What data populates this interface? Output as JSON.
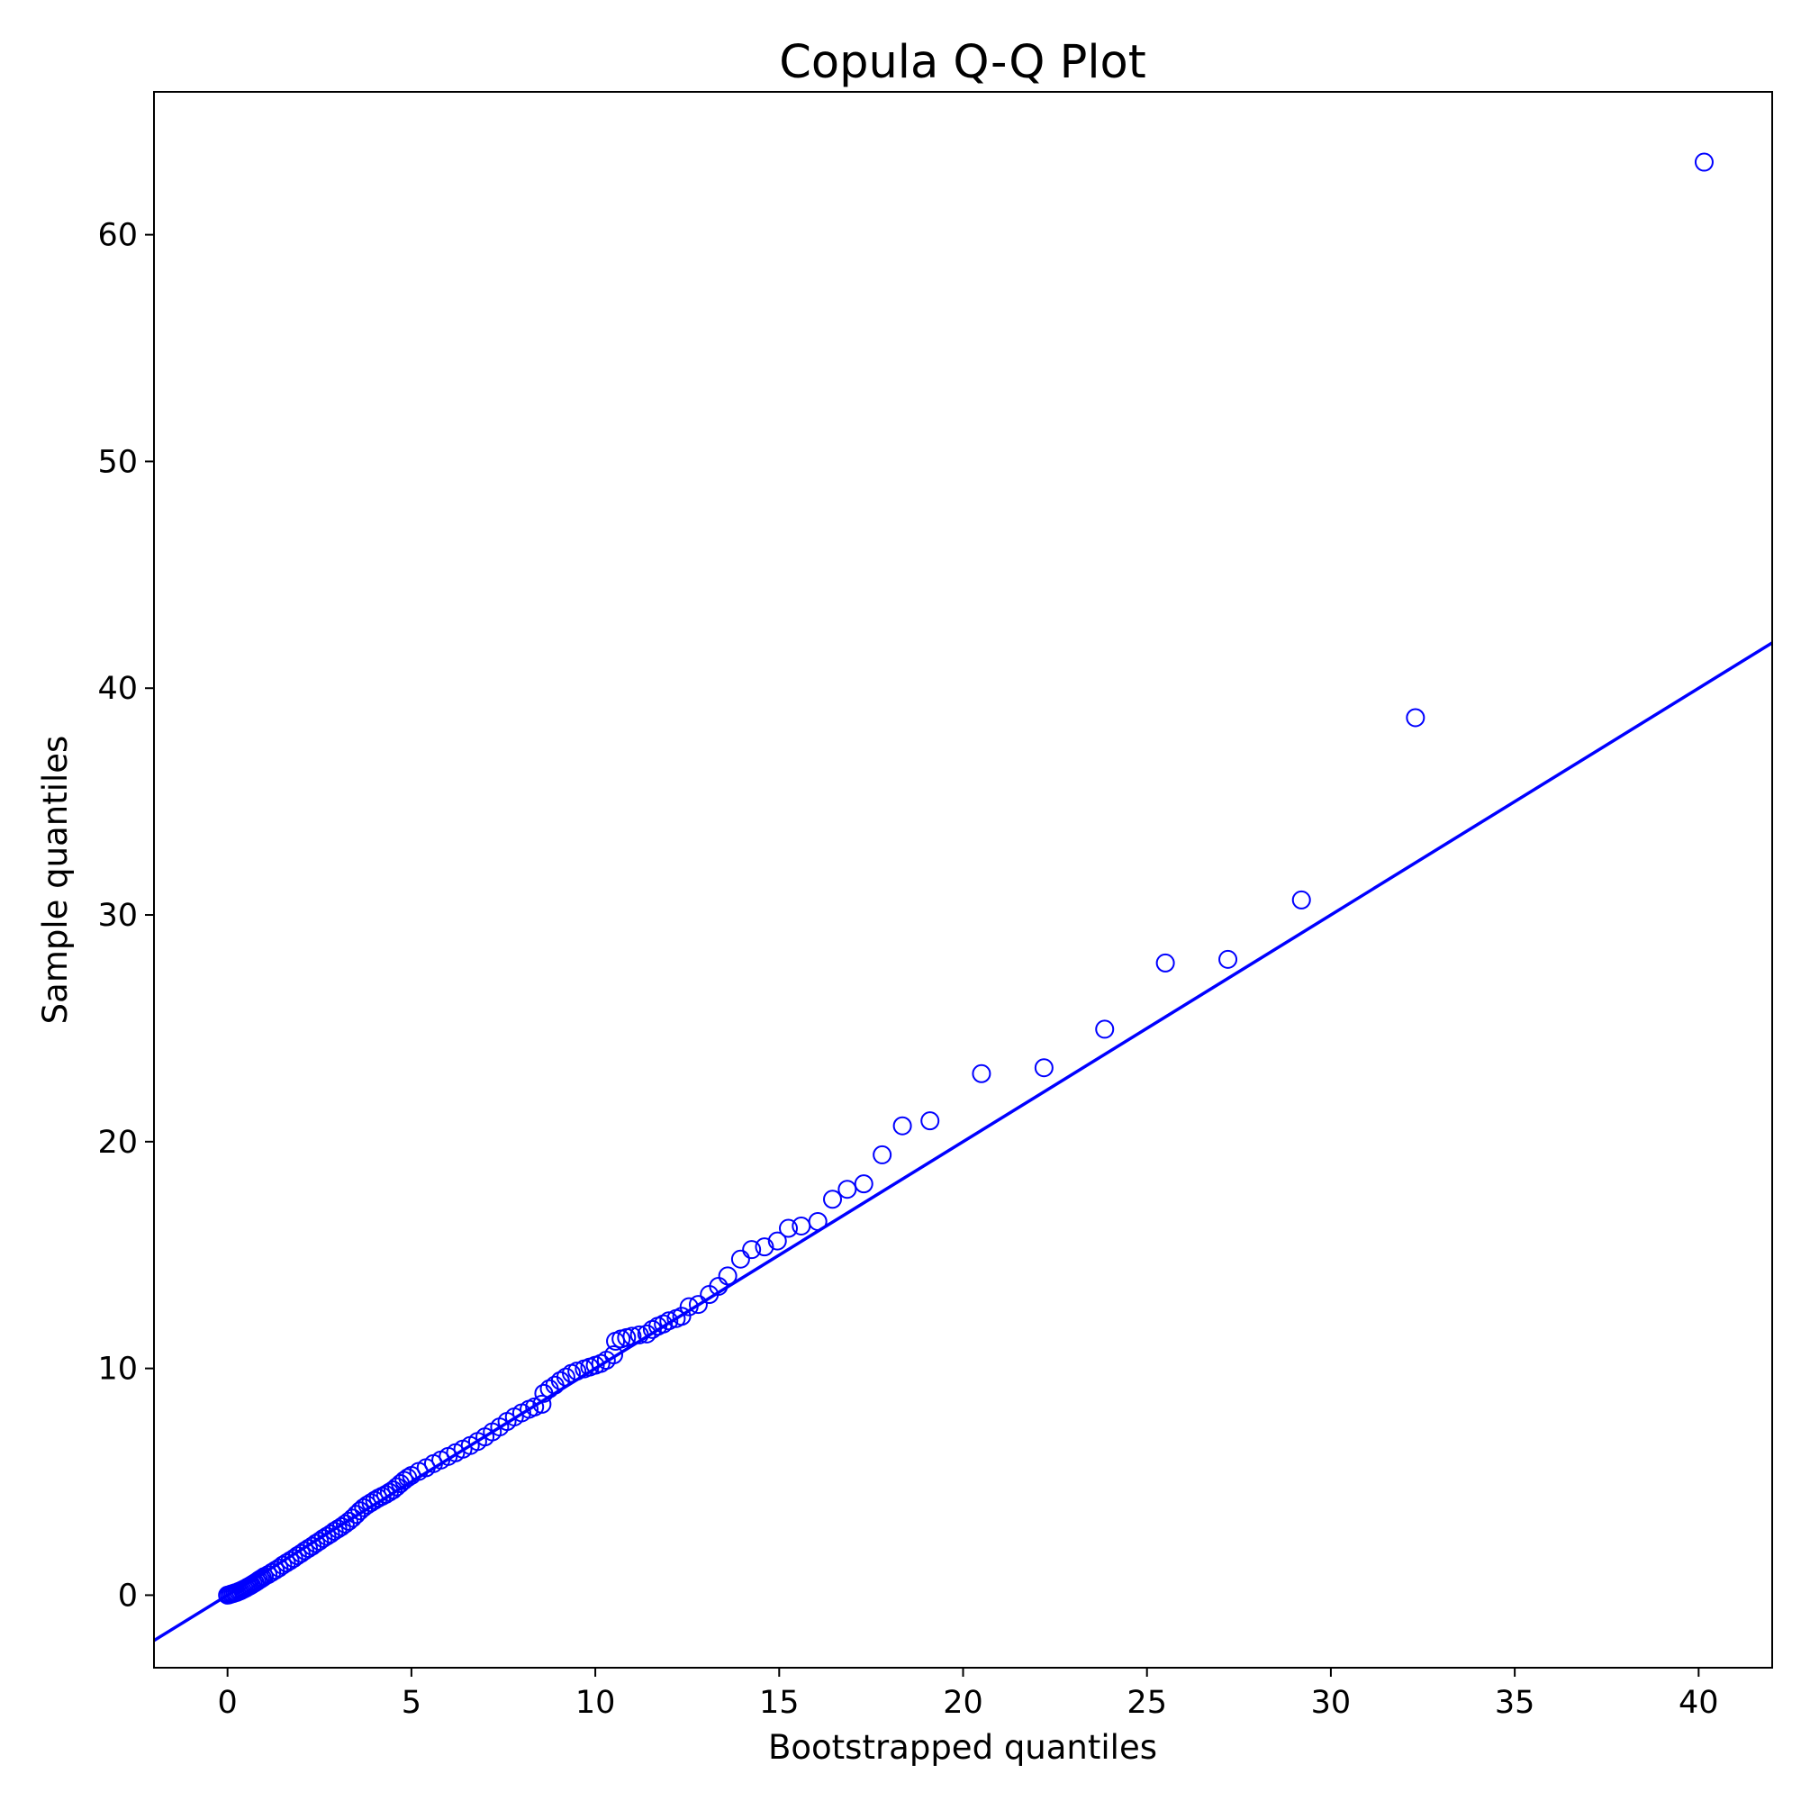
{
  "chart_data": {
    "type": "scatter",
    "title": "Copula Q-Q Plot",
    "xlabel": "Bootstrapped quantiles",
    "ylabel": "Sample quantiles",
    "xlim": [
      -2,
      42
    ],
    "ylim": [
      -3.2,
      66.3
    ],
    "xticks": [
      0,
      5,
      10,
      15,
      20,
      25,
      30,
      35,
      40
    ],
    "yticks": [
      0,
      10,
      20,
      30,
      40,
      50,
      60
    ],
    "grid": false,
    "legend": "none",
    "marker": "open-circle",
    "color": "#0000ff",
    "reference_line": {
      "slope": 1.0,
      "intercept": 0.0,
      "color": "#0000ff"
    },
    "points": [
      [
        0.0,
        0.0
      ],
      [
        0.05,
        0.02
      ],
      [
        0.1,
        0.05
      ],
      [
        0.15,
        0.07
      ],
      [
        0.2,
        0.1
      ],
      [
        0.25,
        0.12
      ],
      [
        0.3,
        0.16
      ],
      [
        0.35,
        0.19
      ],
      [
        0.4,
        0.23
      ],
      [
        0.45,
        0.27
      ],
      [
        0.5,
        0.31
      ],
      [
        0.55,
        0.36
      ],
      [
        0.6,
        0.4
      ],
      [
        0.65,
        0.45
      ],
      [
        0.7,
        0.5
      ],
      [
        0.75,
        0.55
      ],
      [
        0.8,
        0.6
      ],
      [
        0.85,
        0.66
      ],
      [
        0.9,
        0.71
      ],
      [
        0.95,
        0.76
      ],
      [
        1.0,
        0.82
      ],
      [
        1.1,
        0.9
      ],
      [
        1.2,
        1.0
      ],
      [
        1.3,
        1.1
      ],
      [
        1.4,
        1.2
      ],
      [
        1.5,
        1.32
      ],
      [
        1.6,
        1.42
      ],
      [
        1.7,
        1.52
      ],
      [
        1.8,
        1.62
      ],
      [
        1.9,
        1.74
      ],
      [
        2.0,
        1.84
      ],
      [
        2.1,
        1.96
      ],
      [
        2.2,
        2.06
      ],
      [
        2.3,
        2.16
      ],
      [
        2.4,
        2.28
      ],
      [
        2.5,
        2.38
      ],
      [
        2.6,
        2.5
      ],
      [
        2.7,
        2.6
      ],
      [
        2.8,
        2.7
      ],
      [
        2.9,
        2.82
      ],
      [
        3.0,
        2.92
      ],
      [
        3.1,
        3.02
      ],
      [
        3.2,
        3.14
      ],
      [
        3.3,
        3.26
      ],
      [
        3.4,
        3.4
      ],
      [
        3.5,
        3.56
      ],
      [
        3.6,
        3.72
      ],
      [
        3.7,
        3.86
      ],
      [
        3.8,
        3.98
      ],
      [
        3.9,
        4.08
      ],
      [
        4.0,
        4.18
      ],
      [
        4.1,
        4.28
      ],
      [
        4.2,
        4.36
      ],
      [
        4.3,
        4.44
      ],
      [
        4.4,
        4.54
      ],
      [
        4.5,
        4.64
      ],
      [
        4.6,
        4.78
      ],
      [
        4.7,
        4.92
      ],
      [
        4.8,
        5.06
      ],
      [
        4.9,
        5.18
      ],
      [
        5.0,
        5.28
      ],
      [
        5.2,
        5.46
      ],
      [
        5.4,
        5.62
      ],
      [
        5.6,
        5.8
      ],
      [
        5.8,
        5.96
      ],
      [
        6.0,
        6.12
      ],
      [
        6.2,
        6.28
      ],
      [
        6.4,
        6.44
      ],
      [
        6.6,
        6.6
      ],
      [
        6.8,
        6.78
      ],
      [
        7.0,
        6.98
      ],
      [
        7.2,
        7.2
      ],
      [
        7.4,
        7.42
      ],
      [
        7.6,
        7.66
      ],
      [
        7.8,
        7.86
      ],
      [
        8.0,
        8.04
      ],
      [
        8.2,
        8.2
      ],
      [
        8.35,
        8.3
      ],
      [
        8.55,
        8.42
      ],
      [
        8.6,
        8.9
      ],
      [
        8.75,
        9.1
      ],
      [
        8.9,
        9.26
      ],
      [
        9.05,
        9.46
      ],
      [
        9.2,
        9.62
      ],
      [
        9.35,
        9.78
      ],
      [
        9.5,
        9.88
      ],
      [
        9.7,
        9.98
      ],
      [
        9.85,
        10.06
      ],
      [
        10.0,
        10.14
      ],
      [
        10.15,
        10.22
      ],
      [
        10.3,
        10.36
      ],
      [
        10.5,
        10.6
      ],
      [
        10.55,
        11.2
      ],
      [
        10.7,
        11.3
      ],
      [
        10.85,
        11.36
      ],
      [
        11.0,
        11.42
      ],
      [
        11.2,
        11.48
      ],
      [
        11.4,
        11.52
      ],
      [
        11.55,
        11.72
      ],
      [
        11.7,
        11.86
      ],
      [
        11.85,
        11.96
      ],
      [
        12.0,
        12.1
      ],
      [
        12.2,
        12.2
      ],
      [
        12.35,
        12.3
      ],
      [
        12.55,
        12.72
      ],
      [
        12.8,
        12.82
      ],
      [
        13.1,
        13.26
      ],
      [
        13.35,
        13.62
      ],
      [
        13.6,
        14.08
      ],
      [
        13.95,
        14.82
      ],
      [
        14.25,
        15.24
      ],
      [
        14.6,
        15.36
      ],
      [
        14.95,
        15.62
      ],
      [
        15.25,
        16.18
      ],
      [
        15.6,
        16.28
      ],
      [
        16.05,
        16.48
      ],
      [
        16.45,
        17.46
      ],
      [
        16.85,
        17.9
      ],
      [
        17.3,
        18.14
      ],
      [
        17.8,
        19.42
      ],
      [
        18.35,
        20.7
      ],
      [
        19.1,
        20.92
      ],
      [
        20.5,
        23.0
      ],
      [
        22.2,
        23.26
      ],
      [
        23.85,
        24.96
      ],
      [
        25.5,
        27.88
      ],
      [
        27.2,
        28.04
      ],
      [
        29.2,
        30.66
      ],
      [
        32.3,
        38.7
      ],
      [
        40.15,
        63.2
      ]
    ]
  }
}
